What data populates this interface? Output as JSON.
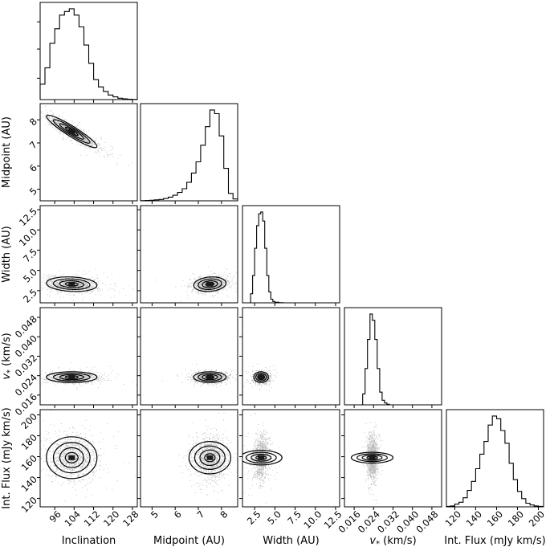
{
  "chart_data": {
    "type": "corner",
    "parameters": [
      {
        "key": "inclination",
        "label": "Inclination",
        "range": [
          90,
          130
        ],
        "ticks": [
          96,
          104,
          112,
          120,
          128
        ],
        "tick_labels": [
          "96",
          "104",
          "112",
          "120",
          "128"
        ],
        "center": 103,
        "spread": 5.2
      },
      {
        "key": "midpoint",
        "label": "Midpoint (AU)",
        "range": [
          4.5,
          8.7
        ],
        "ticks": [
          5,
          6,
          7,
          8
        ],
        "tick_labels": [
          "5",
          "6",
          "7",
          "8"
        ],
        "center": 7.5,
        "spread": 0.35
      },
      {
        "key": "width",
        "label": "Width (AU)",
        "range": [
          1.0,
          13.0
        ],
        "ticks": [
          2.5,
          5.0,
          7.5,
          10.0,
          12.5
        ],
        "tick_labels": [
          "2.5",
          "5.0",
          "7.5",
          "10.0",
          "12.5"
        ],
        "center": 3.3,
        "spread": 0.45
      },
      {
        "key": "vstar",
        "label": "v* (km/s)",
        "label_main": "v",
        "label_sub": "*",
        "label_suffix": " (km/s)",
        "range": [
          0.012,
          0.052
        ],
        "ticks": [
          0.016,
          0.024,
          0.032,
          0.04,
          0.048
        ],
        "tick_labels": [
          "0.016",
          "0.024",
          "0.032",
          "0.040",
          "0.048"
        ],
        "center": 0.0234,
        "spread": 0.0011
      },
      {
        "key": "flux",
        "label": "Int. Flux (mJy km/s)",
        "range": [
          112,
          205
        ],
        "ticks": [
          120,
          140,
          160,
          180,
          200
        ],
        "tick_labels": [
          "120",
          "140",
          "160",
          "180",
          "200"
        ],
        "center": 159,
        "spread": 10
      }
    ],
    "histograms": {
      "inclination": {
        "edges": [
          90,
          92,
          94,
          96,
          98,
          100,
          102,
          104,
          106,
          108,
          110,
          112,
          114,
          116,
          118,
          120,
          122,
          124,
          126,
          128,
          130
        ],
        "counts": [
          0.17,
          0.35,
          0.62,
          0.78,
          0.93,
          0.97,
          1.0,
          0.93,
          0.8,
          0.6,
          0.4,
          0.22,
          0.14,
          0.09,
          0.05,
          0.03,
          0.015,
          0.008,
          0.004,
          0.002
        ]
      },
      "midpoint": {
        "edges": [
          4.5,
          4.7,
          4.9,
          5.1,
          5.3,
          5.5,
          5.7,
          5.9,
          6.1,
          6.3,
          6.5,
          6.7,
          6.9,
          7.1,
          7.3,
          7.5,
          7.7,
          7.9,
          8.1,
          8.3,
          8.5,
          8.7
        ],
        "counts": [
          0.002,
          0.004,
          0.006,
          0.01,
          0.015,
          0.025,
          0.04,
          0.06,
          0.09,
          0.13,
          0.2,
          0.3,
          0.42,
          0.6,
          0.8,
          0.98,
          0.94,
          0.7,
          0.35,
          0.08,
          0.02
        ]
      },
      "width": {
        "edges": [
          2.0,
          2.25,
          2.5,
          2.75,
          3.0,
          3.25,
          3.5,
          3.75,
          4.0,
          4.25,
          4.5,
          4.75,
          5.0,
          5.5,
          6.0
        ],
        "counts": [
          0.1,
          0.3,
          0.6,
          0.85,
          0.98,
          1.0,
          0.9,
          0.6,
          0.3,
          0.12,
          0.04,
          0.015,
          0.006,
          0.002
        ]
      },
      "vstar": {
        "edges": [
          0.0195,
          0.0205,
          0.0215,
          0.0225,
          0.0235,
          0.0245,
          0.0255,
          0.0265,
          0.0275,
          0.0285,
          0.0295,
          0.0305
        ],
        "counts": [
          0.12,
          0.4,
          0.72,
          1.0,
          0.93,
          0.72,
          0.4,
          0.14,
          0.05,
          0.02,
          0.006
        ]
      },
      "flux": {
        "edges": [
          112,
          116,
          120,
          124,
          128,
          132,
          136,
          140,
          144,
          148,
          152,
          156,
          160,
          164,
          168,
          172,
          176,
          180,
          184,
          188,
          192,
          196,
          200,
          204
        ],
        "counts": [
          0.005,
          0.01,
          0.03,
          0.05,
          0.1,
          0.18,
          0.28,
          0.42,
          0.58,
          0.72,
          0.9,
          1.0,
          0.97,
          0.84,
          0.7,
          0.48,
          0.3,
          0.17,
          0.09,
          0.04,
          0.02,
          0.01,
          0.005
        ]
      }
    },
    "grid": false,
    "legend": "none"
  }
}
